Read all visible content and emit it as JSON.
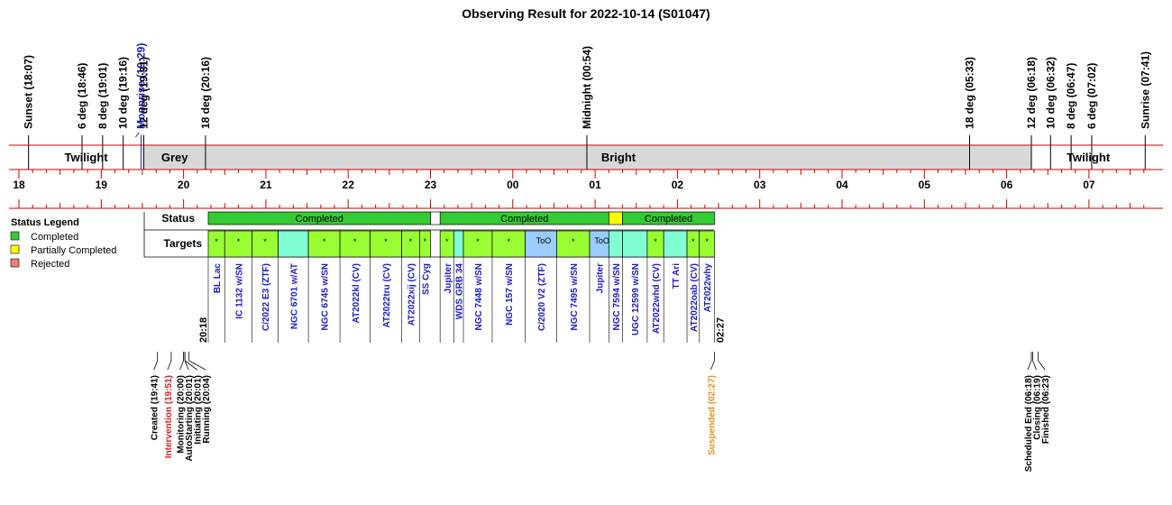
{
  "chart_data": {
    "type": "timeline",
    "title": "Observing Result for 2022-10-14 (S01047)",
    "events_top": [
      {
        "time": "18:07",
        "label": "Sunset (18:07)",
        "color": "#000000"
      },
      {
        "time": "18:46",
        "label": "6 deg (18:46)",
        "color": "#000000"
      },
      {
        "time": "19:01",
        "label": "8 deg (19:01)",
        "color": "#000000"
      },
      {
        "time": "19:16",
        "label": "10 deg (19:16)",
        "color": "#000000"
      },
      {
        "time": "19:29",
        "label": "Moonrise (19:29)",
        "color": "#1a1acc"
      },
      {
        "time": "19:31",
        "label": "12 deg (19:31)",
        "color": "#000000"
      },
      {
        "time": "20:16",
        "label": "18 deg (20:16)",
        "color": "#000000"
      },
      {
        "time": "00:54",
        "label": "Midnight (00:54)",
        "color": "#000000"
      },
      {
        "time": "05:33",
        "label": "18 deg (05:33)",
        "color": "#000000"
      },
      {
        "time": "06:18",
        "label": "12 deg (06:18)",
        "color": "#000000"
      },
      {
        "time": "06:32",
        "label": "10 deg (06:32)",
        "color": "#000000"
      },
      {
        "time": "06:47",
        "label": "8 deg (06:47)",
        "color": "#000000"
      },
      {
        "time": "07:02",
        "label": "6 deg (07:02)",
        "color": "#000000"
      },
      {
        "time": "07:41",
        "label": "Sunrise (07:41)",
        "color": "#000000"
      }
    ],
    "sky_bands": [
      {
        "start": "18:07",
        "end": "19:31",
        "label": "Twilight",
        "fill": "#ffffff"
      },
      {
        "start": "19:31",
        "end": "20:16",
        "label": "Grey",
        "fill": "#d8d8d8"
      },
      {
        "start": "20:16",
        "end": "06:18",
        "label": "Bright",
        "fill": "#d8d8d8"
      },
      {
        "start": "06:18",
        "end": "07:41",
        "label": "Twilight",
        "fill": "#ffffff"
      }
    ],
    "hour_ticks": [
      "18",
      "19",
      "20",
      "21",
      "22",
      "23",
      "00",
      "01",
      "02",
      "03",
      "04",
      "05",
      "06",
      "07"
    ],
    "row_labels": {
      "status": "Status",
      "targets": "Targets"
    },
    "status_blocks": [
      {
        "start": "20:18",
        "end": "23:00",
        "label": "Completed",
        "status": "completed"
      },
      {
        "start": "23:07",
        "end": "01:10",
        "label": "Completed",
        "status": "completed"
      },
      {
        "start": "01:10",
        "end": "01:20",
        "label": "",
        "status": "partial"
      },
      {
        "start": "01:20",
        "end": "02:27",
        "label": "Completed",
        "status": "completed"
      }
    ],
    "targets": [
      {
        "name": "BL Lac",
        "start": "20:18",
        "end": "20:30",
        "kind": "survey",
        "mark": "*"
      },
      {
        "name": "IC 1132 w/SN",
        "start": "20:30",
        "end": "20:50",
        "kind": "survey",
        "mark": "*"
      },
      {
        "name": "C/2022 E3 (ZTF)",
        "start": "20:50",
        "end": "21:09",
        "kind": "survey",
        "mark": "*"
      },
      {
        "name": "NGC 6701 w/AT",
        "start": "21:09",
        "end": "21:31",
        "kind": "monitor",
        "mark": ""
      },
      {
        "name": "NGC 6745 w/SN",
        "start": "21:31",
        "end": "21:54",
        "kind": "survey",
        "mark": "*"
      },
      {
        "name": "AT2022kl (CV)",
        "start": "21:54",
        "end": "22:16",
        "kind": "survey",
        "mark": "*"
      },
      {
        "name": "AT2022tru (CV)",
        "start": "22:16",
        "end": "22:39",
        "kind": "survey",
        "mark": "*"
      },
      {
        "name": "AT2022xij (CV)",
        "start": "22:39",
        "end": "22:52",
        "kind": "survey",
        "mark": "*"
      },
      {
        "name": "SS Cyg",
        "start": "22:52",
        "end": "23:00",
        "kind": "survey",
        "mark": "*"
      },
      {
        "name": "Jupiter",
        "start": "23:07",
        "end": "23:17",
        "kind": "survey",
        "mark": "*"
      },
      {
        "name": "WDS GRB 34",
        "start": "23:17",
        "end": "23:24",
        "kind": "monitor",
        "mark": ""
      },
      {
        "name": "NGC 7448 w/SN",
        "start": "23:24",
        "end": "23:45",
        "kind": "survey",
        "mark": "*"
      },
      {
        "name": "NGC 157 w/SN",
        "start": "23:45",
        "end": "00:09",
        "kind": "survey",
        "mark": "*"
      },
      {
        "name": "C/2020 V2 (ZTF)",
        "start": "00:09",
        "end": "00:32",
        "kind": "too",
        "mark": "ToO"
      },
      {
        "name": "NGC 7495 w/SN",
        "start": "00:32",
        "end": "00:56",
        "kind": "survey",
        "mark": "*"
      },
      {
        "name": "Jupiter",
        "start": "00:56",
        "end": "01:10",
        "kind": "too",
        "mark": "ToO"
      },
      {
        "name": "NGC 7594 w/SN",
        "start": "01:10",
        "end": "01:20",
        "kind": "monitor",
        "mark": ""
      },
      {
        "name": "UGC 12599 w/SN",
        "start": "01:20",
        "end": "01:38",
        "kind": "monitor",
        "mark": ""
      },
      {
        "name": "AT2022whd (CV)",
        "start": "01:38",
        "end": "01:50",
        "kind": "survey",
        "mark": "*"
      },
      {
        "name": "TT Ari",
        "start": "01:50",
        "end": "02:07",
        "kind": "monitor",
        "mark": ""
      },
      {
        "name": "AT2022oab (CV)",
        "start": "02:07",
        "end": "02:16",
        "kind": "survey",
        "mark": "*"
      },
      {
        "name": "AT2022why",
        "start": "02:16",
        "end": "02:27",
        "kind": "survey",
        "mark": "*"
      }
    ],
    "run_start": {
      "time": "20:18",
      "label": "20:18"
    },
    "run_end": {
      "time": "02:27",
      "label": "02:27"
    },
    "events_bottom": [
      {
        "time": "19:41",
        "label": "Created (19:41)",
        "color": "#000000"
      },
      {
        "time": "19:51",
        "label": "Intervention (19:51)",
        "color": "#d42020"
      },
      {
        "time": "20:00",
        "label": "Monitoring (20:00)",
        "color": "#000000"
      },
      {
        "time": "20:01",
        "label": "AutoStarting (20:01)",
        "color": "#000000"
      },
      {
        "time": "20:01",
        "label": "Initiating (20:01)",
        "color": "#000000"
      },
      {
        "time": "20:04",
        "label": "Running (20:04)",
        "color": "#000000"
      },
      {
        "time": "02:27",
        "label": "Suspended (02:27)",
        "color": "#e8901a"
      },
      {
        "time": "06:18",
        "label": "Scheduled End (06:18)",
        "color": "#000000"
      },
      {
        "time": "06:19",
        "label": "Closing (06:19)",
        "color": "#000000"
      },
      {
        "time": "06:23",
        "label": "Finished (06:23)",
        "color": "#000000"
      }
    ],
    "legend": {
      "title": "Status Legend",
      "placement": "left",
      "items": [
        {
          "label": "Completed",
          "color": "#33cc33"
        },
        {
          "label": "Partially Completed",
          "color": "#ffff00"
        },
        {
          "label": "Rejected",
          "color": "#f08080"
        }
      ]
    },
    "colors": {
      "completed": "#33cc33",
      "partial": "#ffff00",
      "rejected": "#f08080",
      "survey": "#99ff33",
      "monitor": "#80ffd4",
      "too": "#99ccff",
      "target_text": "#1a1acc",
      "axis_line": "#cc0000",
      "band_grey": "#d8d8d8"
    }
  }
}
